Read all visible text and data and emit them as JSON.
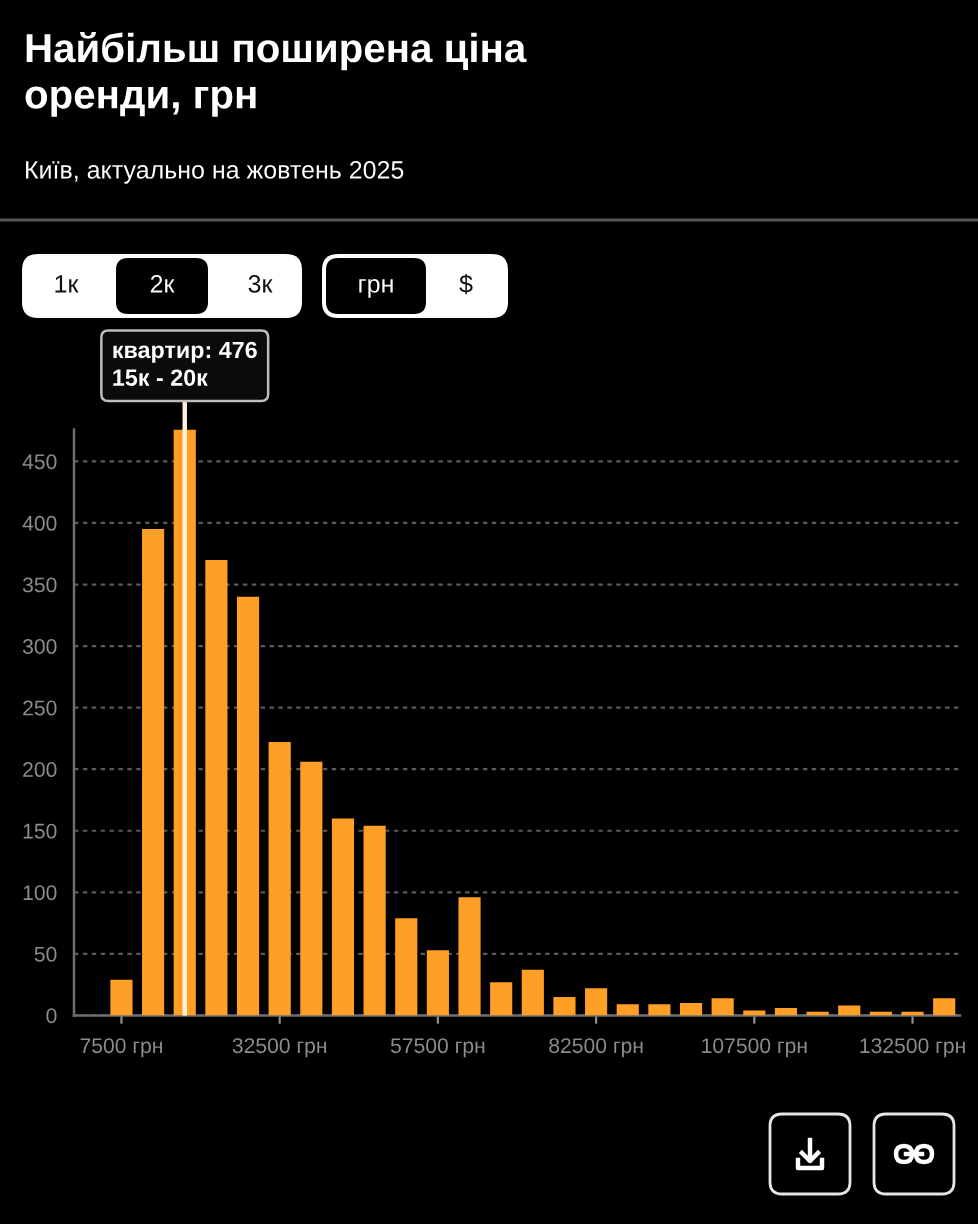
{
  "chart_data": {
    "type": "histogram",
    "title": "Найбільш поширена ціна\nоренди, грн",
    "subtitle": "Київ, актуально на жовтень 2025",
    "bins": [
      5000,
      10000,
      15000,
      20000,
      25000,
      30000,
      35000,
      40000,
      45000,
      50000,
      55000,
      60000,
      65000,
      70000,
      75000,
      80000,
      85000,
      90000,
      95000,
      100000,
      105000,
      110000,
      115000,
      120000,
      125000,
      130000,
      135000,
      140000
    ],
    "values": [
      29,
      395,
      476,
      370,
      340,
      222,
      206,
      160,
      154,
      79,
      53,
      96,
      27,
      37,
      15,
      22,
      9,
      9,
      10,
      14,
      4,
      6,
      3,
      8,
      3,
      3,
      14
    ],
    "color": "#ff9f26",
    "xlim": [
      0,
      140000
    ],
    "xticks": [
      {
        "value": 7500,
        "label": "7500 грн"
      },
      {
        "value": 32500,
        "label": "32500 грн"
      },
      {
        "value": 57500,
        "label": "57500 грн"
      },
      {
        "value": 82500,
        "label": "82500 грн"
      },
      {
        "value": 107500,
        "label": "107500 грн"
      },
      {
        "value": 132500,
        "label": "132500 грн"
      }
    ],
    "ylim": [
      0,
      476
    ],
    "yticks": [
      0,
      50,
      100,
      150,
      200,
      250,
      300,
      350,
      400,
      450
    ],
    "grid": "y",
    "ref_lines": [
      {
        "axis": "x",
        "value": 17500,
        "color": "#fff1dc"
      }
    ],
    "annotations": [
      {
        "text": "квартир: 476\n15к - 20к",
        "x": 17500,
        "y": 476
      },
      "1к",
      "2к",
      "3к",
      "грн",
      "$"
    ]
  }
}
